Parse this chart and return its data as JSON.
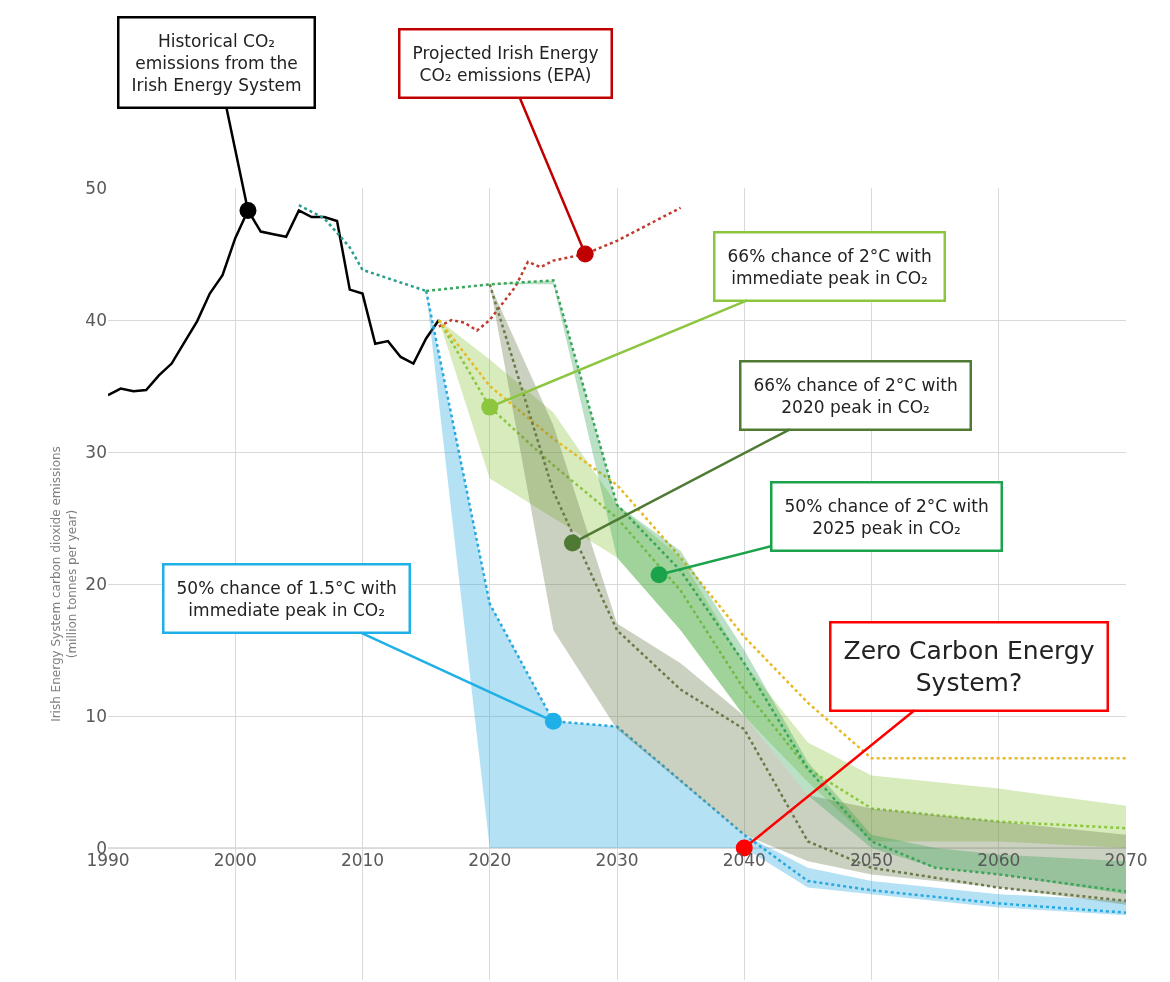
{
  "chart_data": {
    "type": "line",
    "ylabel": "Irish Energy System carbon dioxide emissions\n(million tonnes per year)",
    "xlim": [
      1990,
      2070
    ],
    "xticks": [
      1990,
      2000,
      2010,
      2020,
      2030,
      2040,
      2050,
      2060,
      2070
    ],
    "ylim": [
      -10,
      50
    ],
    "yticks": [
      0,
      10,
      20,
      30,
      40,
      50
    ],
    "grid": true,
    "marker": "none",
    "series": [
      {
        "color": "#000000",
        "line_style": "solid",
        "x": [
          1990,
          1991,
          1992,
          1993,
          1994,
          1995,
          1996,
          1997,
          1998,
          1999,
          2000,
          2001,
          2002,
          2003,
          2004,
          2005,
          2006,
          2007,
          2008,
          2009,
          2010,
          2011,
          2012,
          2013,
          2014,
          2015,
          2016
        ],
        "values": [
          34.3,
          34.8,
          34.6,
          34.7,
          35.8,
          36.7,
          38.3,
          39.9,
          42.0,
          43.4,
          46.2,
          48.3,
          46.7,
          46.5,
          46.3,
          48.3,
          47.8,
          47.8,
          47.5,
          42.3,
          42.0,
          38.2,
          38.4,
          37.2,
          36.7,
          38.6,
          40.0
        ]
      },
      {
        "color": "#2a9d8f",
        "line_style": "dotted",
        "x": [
          2005,
          2007,
          2009,
          2010,
          2015
        ],
        "values": [
          48.7,
          47.7,
          45.5,
          43.8,
          42.2
        ]
      },
      {
        "color": "#c0392b",
        "line_style": "dotted",
        "x": [
          2016,
          2017,
          2018,
          2019,
          2020,
          2022,
          2023,
          2024,
          2025,
          2027.5,
          2030,
          2033,
          2035
        ],
        "values": [
          39.5,
          40.0,
          39.8,
          39.2,
          40.0,
          42.5,
          44.4,
          44.0,
          44.5,
          45.0,
          46.0,
          47.5,
          48.5
        ]
      },
      {
        "color": "#29a8e0",
        "line_style": "dotted",
        "x": [
          2015,
          2020,
          2025,
          2030,
          2040,
          2045,
          2050,
          2060,
          2070
        ],
        "values": [
          42.2,
          18.5,
          9.6,
          9.2,
          1.0,
          -2.5,
          -3.2,
          -4.2,
          -4.9
        ],
        "lower": [
          42.2,
          0,
          0,
          0,
          0,
          -3,
          -3.5,
          -4.5,
          -5.1
        ],
        "upper": [
          42.2,
          18.5,
          9.6,
          9.2,
          1.0,
          -1.5,
          -2.5,
          -3.5,
          -4.0
        ]
      },
      {
        "color": "#8cc63f",
        "line_style": "dotted",
        "x": [
          2016,
          2020,
          2025,
          2030,
          2035,
          2040,
          2045,
          2050,
          2060,
          2070
        ],
        "values": [
          40,
          33.4,
          29,
          25,
          19.5,
          12,
          6,
          3,
          2,
          1.5
        ],
        "lower": [
          40,
          28,
          25,
          22,
          16.5,
          10,
          5,
          0.5,
          0.5,
          0
        ],
        "upper": [
          40,
          37,
          33,
          26,
          22,
          14,
          8,
          5.5,
          4.5,
          3.2
        ]
      },
      {
        "color": "#e8b923",
        "line_style": "dotted",
        "x": [
          2016,
          2020,
          2025,
          2030,
          2035,
          2040,
          2045,
          2050,
          2070
        ],
        "values": [
          40,
          35,
          31,
          27.5,
          22,
          16,
          11,
          6.8,
          6.8
        ]
      },
      {
        "color": "#6b7a4a",
        "line_style": "dotted",
        "x": [
          2020,
          2025,
          2030,
          2035,
          2040,
          2045,
          2050,
          2060,
          2070
        ],
        "values": [
          42.7,
          27,
          16.5,
          12,
          9,
          0.5,
          -1.5,
          -3,
          -4
        ],
        "lower": [
          42.7,
          16.5,
          9,
          5,
          1,
          -1,
          -2,
          -3,
          -4.3
        ],
        "upper": [
          42.7,
          32,
          17,
          14,
          10,
          4,
          3,
          2,
          1
        ]
      },
      {
        "color": "#3aa55a",
        "line_style": "dotted",
        "x": [
          2015,
          2020,
          2025,
          2030,
          2035,
          2040,
          2045,
          2050,
          2055,
          2060,
          2070
        ],
        "values": [
          42.2,
          42.7,
          43,
          26,
          21,
          14,
          6,
          0.5,
          -1.5,
          -2,
          -3.3
        ],
        "lower": [
          42.2,
          42.7,
          42.7,
          22,
          16.5,
          10,
          4,
          0,
          -1.5,
          -2,
          -3.5
        ],
        "upper": [
          42.2,
          42.7,
          43,
          26,
          22.5,
          15,
          6.5,
          1,
          0,
          -0.5,
          -1
        ]
      },
      {
        "type": "scatter",
        "marker": "circle",
        "x": [
          2001,
          2027.5,
          2020,
          2026.5,
          2033.3,
          2025,
          2040
        ],
        "values": [
          48.3,
          45,
          33.4,
          23.1,
          20.7,
          9.6,
          0
        ],
        "colors": [
          "#000000",
          "#c00000",
          "#8cc63f",
          "#4e7a34",
          "#1aa34a",
          "#1fb0e8",
          "#ff0000"
        ]
      }
    ],
    "annotations": [
      {
        "text": "Historical CO₂\nemissions from the\nIrish Energy System",
        "x": 2001,
        "y": 48.3
      },
      {
        "text": "Projected Irish Energy\nCO₂ emissions (EPA)",
        "x": 2027.5,
        "y": 45
      },
      {
        "text": "66% chance of 2°C with\nimmediate peak in CO₂",
        "x": 2020,
        "y": 33.4
      },
      {
        "text": "66% chance of 2°C with\n2020 peak in CO₂",
        "x": 2026.5,
        "y": 23.1
      },
      {
        "text": "50% chance of 2°C with\n2025 peak in CO₂",
        "x": 2033.3,
        "y": 20.7
      },
      {
        "text": "50% chance of 1.5°C with\nimmediate peak in CO₂",
        "x": 2025,
        "y": 9.6
      },
      {
        "text": "Zero Carbon Energy\nSystem?",
        "x": 2040,
        "y": 0
      }
    ]
  }
}
